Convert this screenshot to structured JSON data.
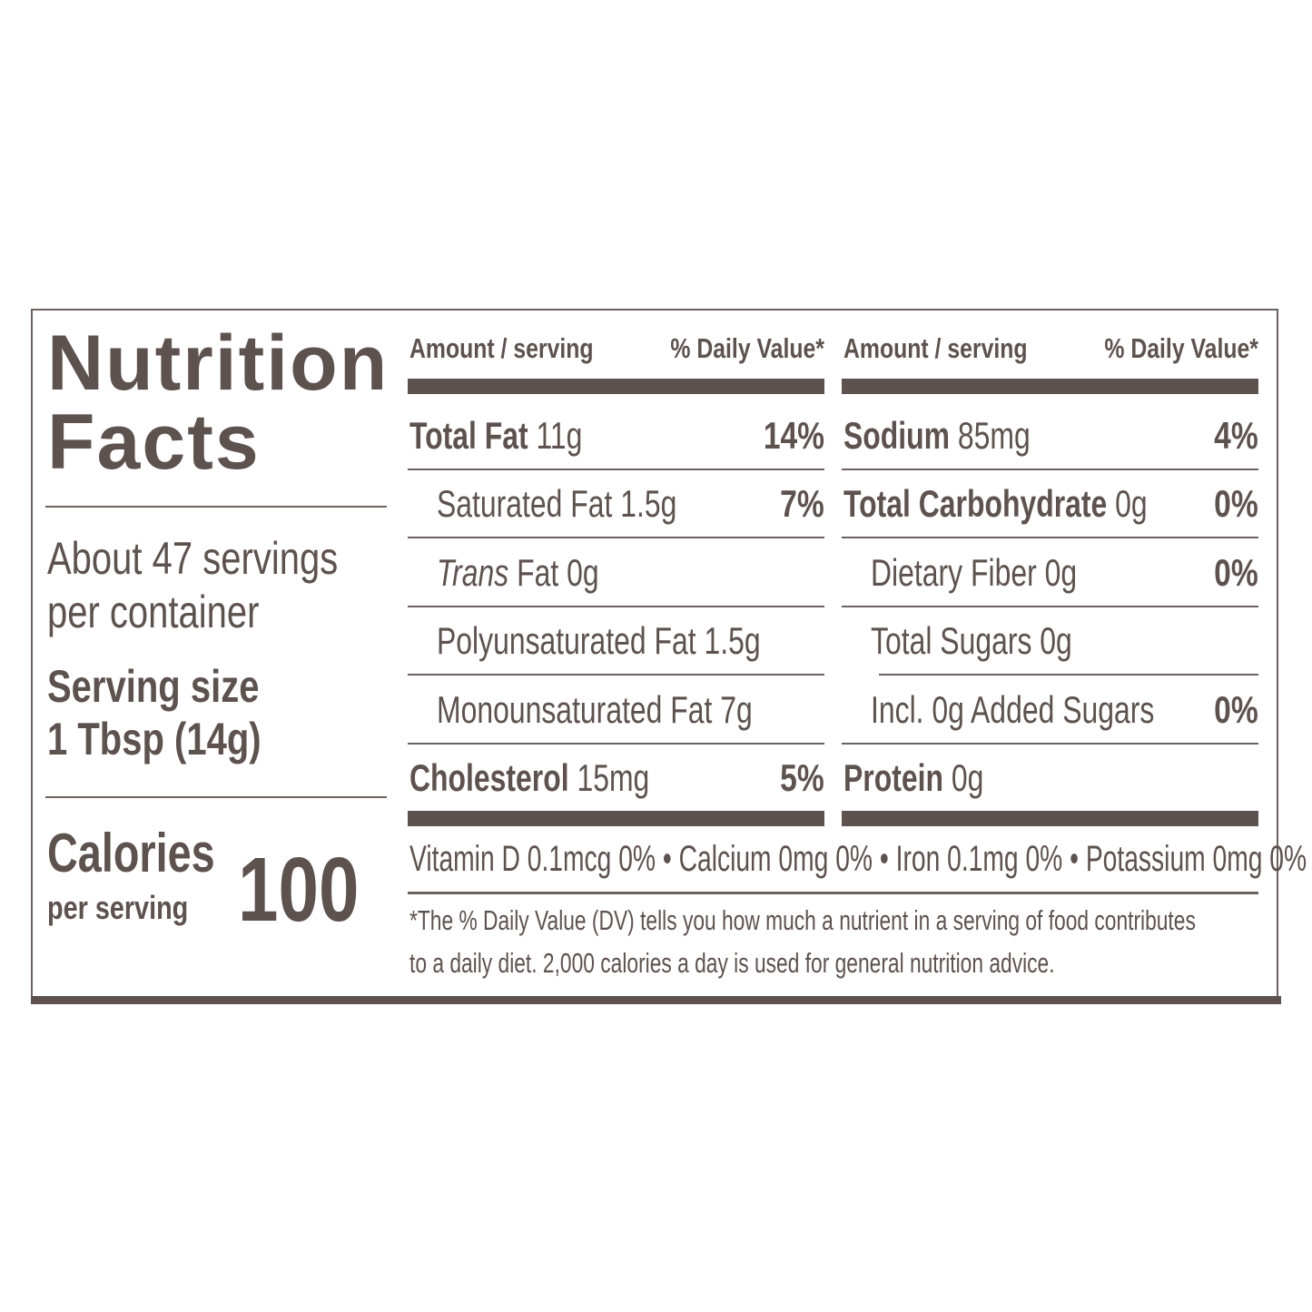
{
  "label": {
    "title_line1": "Nutrition",
    "title_line2": "Facts",
    "servings_line1": "About 47 servings",
    "servings_line2": "per container",
    "serving_size_label": "Serving size",
    "serving_size_value": "1 Tbsp (14g)",
    "calories_label": "Calories",
    "calories_sub": "per serving",
    "calories_value": "100",
    "column_header_amount": "Amount / serving",
    "column_header_dv": "% Daily Value*",
    "left_nutrients": [
      {
        "name": "Total Fat",
        "amount": "11g",
        "dv": "14%",
        "bold": true,
        "indent": false
      },
      {
        "name": "Saturated Fat",
        "amount": "1.5g",
        "dv": "7%",
        "bold": false,
        "indent": true
      },
      {
        "name": "Trans",
        "name_suffix": "Fat",
        "amount": "0g",
        "dv": "",
        "bold": false,
        "indent": true,
        "italic": true
      },
      {
        "name": "Polyunsaturated Fat",
        "amount": "1.5g",
        "dv": "",
        "bold": false,
        "indent": true
      },
      {
        "name": "Monounsaturated Fat",
        "amount": "7g",
        "dv": "",
        "bold": false,
        "indent": true
      },
      {
        "name": "Cholesterol",
        "amount": "15mg",
        "dv": "5%",
        "bold": true,
        "indent": false
      }
    ],
    "right_nutrients": [
      {
        "name": "Sodium",
        "amount": "85mg",
        "dv": "4%",
        "bold": true,
        "indent": false
      },
      {
        "name": "Total Carbohydrate",
        "amount": "0g",
        "dv": "0%",
        "bold": true,
        "indent": false
      },
      {
        "name": "Dietary Fiber",
        "amount": "0g",
        "dv": "0%",
        "bold": false,
        "indent": true
      },
      {
        "name": "Total Sugars",
        "amount": "0g",
        "dv": "",
        "bold": false,
        "indent": true
      },
      {
        "name": "Incl. 0g Added Sugars",
        "amount": "",
        "dv": "0%",
        "bold": false,
        "indent": true
      },
      {
        "name": "Protein",
        "amount": "0g",
        "dv": "",
        "bold": true,
        "indent": false
      }
    ],
    "vitamins_line": "Vitamin  D  0.1mcg 0% • Calcium  0mg 0% • Iron  0.1mg 0% • Potassium  0mg 0%",
    "footnote_line1": "*The % Daily Value (DV) tells you how much a nutrient in a serving of food contributes",
    "footnote_line2": "to a daily diet. 2,000 calories a day is used for general nutrition advice.",
    "colors": {
      "ink": "#5e524e",
      "background": "#ffffff"
    }
  }
}
